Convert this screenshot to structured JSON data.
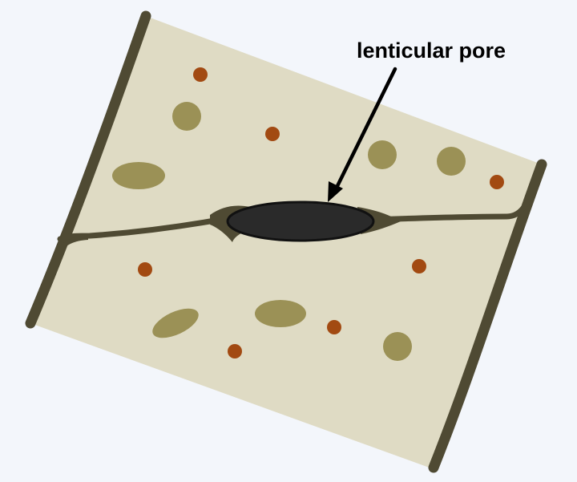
{
  "annotation": {
    "label": "lenticular pore"
  },
  "colors": {
    "background": "#f3f6fb",
    "slab_fill": "#dfdbc4",
    "cell_wall": "#4f4a33",
    "pore_fill": "#2a2a2a",
    "pore_outline": "#111111",
    "olive_inclusion": "#9b9156",
    "rust_inclusion": "#a24a12",
    "label_color": "#000000"
  },
  "icons": {
    "arrow": "arrow-down-left-icon"
  }
}
